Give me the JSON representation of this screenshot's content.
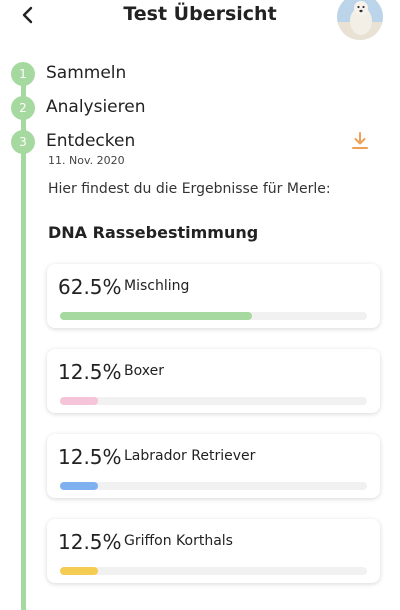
{
  "header": {
    "title": "Test Übersicht",
    "back_icon": "chevron-left-icon",
    "avatar": "dog-avatar"
  },
  "steps": [
    {
      "number": "1",
      "label": "Sammeln"
    },
    {
      "number": "2",
      "label": "Analysieren"
    },
    {
      "number": "3",
      "label": "Entdecken",
      "date": "11. Nov. 2020"
    }
  ],
  "download_icon": "download-icon",
  "intro_text": "Hier findest du die Ergebnisse für Merle:",
  "section_title": "DNA Rassebestimmung",
  "results": [
    {
      "percent_label": "62.5%",
      "percent": 62.5,
      "breed": "Mischling",
      "color": "#a6d9a0"
    },
    {
      "percent_label": "12.5%",
      "percent": 12.5,
      "breed": "Boxer",
      "color": "#f5c4d9"
    },
    {
      "percent_label": "12.5%",
      "percent": 12.5,
      "breed": "Labrador Retriever",
      "color": "#7fb1f0"
    },
    {
      "percent_label": "12.5%",
      "percent": 12.5,
      "breed": "Griffon Korthals",
      "color": "#f5cc52"
    }
  ],
  "colors": {
    "accent": "#a6d9a0",
    "download": "#f0a055"
  }
}
